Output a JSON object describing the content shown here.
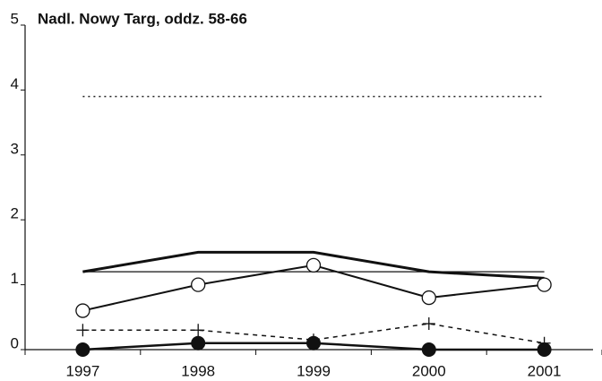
{
  "chart_data": {
    "type": "line",
    "title": "Nadl. Nowy Targ, oddz. 58-66",
    "categories": [
      "1997",
      "1998",
      "1999",
      "2000",
      "2001"
    ],
    "ylim": [
      0,
      5
    ],
    "yticks": [
      0,
      1,
      2,
      3,
      4,
      5
    ],
    "series": [
      {
        "color": "#222",
        "style": "dotted",
        "width": 1.5,
        "marker": "none",
        "values": [
          3.9,
          3.9,
          3.9,
          3.9,
          3.9
        ]
      },
      {
        "color": "#111",
        "style": "solid",
        "width": 3,
        "marker": "none",
        "values": [
          1.2,
          1.5,
          1.5,
          1.2,
          1.1
        ]
      },
      {
        "color": "#111",
        "style": "solid",
        "width": 1.2,
        "marker": "none",
        "values": [
          1.2,
          1.2,
          1.2,
          1.2,
          1.2
        ]
      },
      {
        "color": "#111",
        "style": "solid",
        "width": 2,
        "marker": "circle-open",
        "values": [
          0.6,
          1.0,
          1.3,
          0.8,
          1.0
        ]
      },
      {
        "color": "#111",
        "style": "dashed",
        "width": 1.5,
        "marker": "plus",
        "values": [
          0.3,
          0.3,
          0.15,
          0.4,
          0.1
        ]
      },
      {
        "color": "#111",
        "style": "solid",
        "width": 2.5,
        "marker": "circle-filled",
        "values": [
          0,
          0.1,
          0.1,
          0,
          0
        ]
      }
    ]
  }
}
